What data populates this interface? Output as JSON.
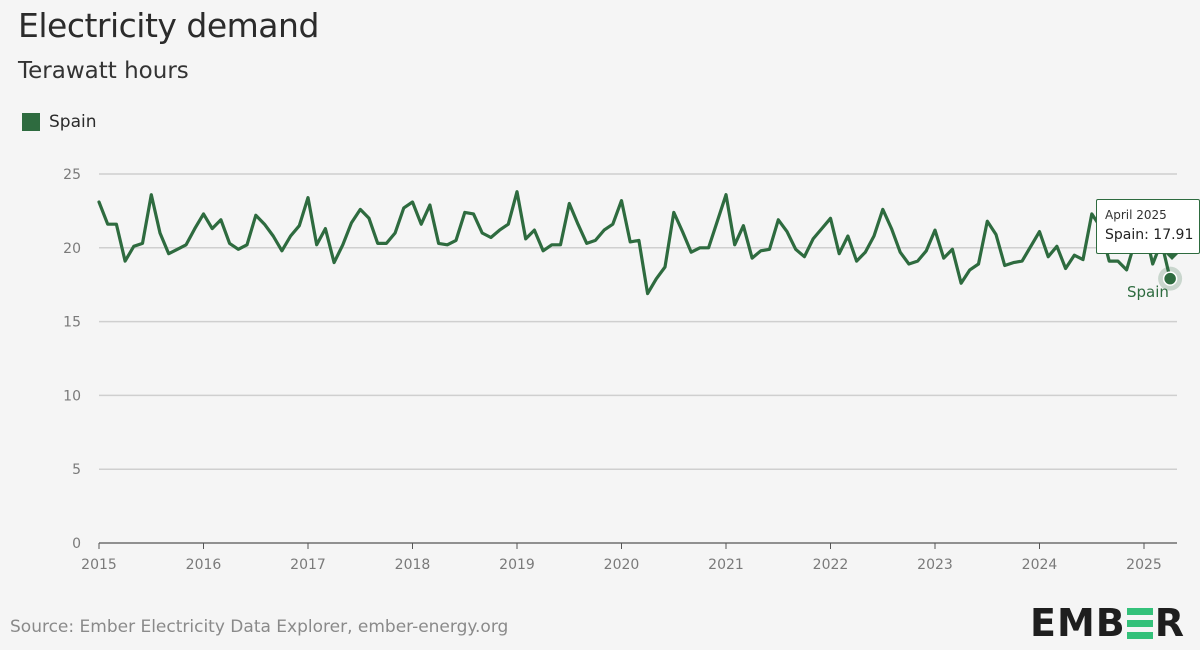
{
  "header": {
    "title": "Electricity demand",
    "subtitle": "Terawatt hours"
  },
  "legend": {
    "label": "Spain",
    "color": "#2e6b3f"
  },
  "tooltip": {
    "date": "April 2025",
    "value_text": "Spain: 17.91"
  },
  "end_label": "Spain",
  "footer": {
    "source": "Source: Ember Electricity Data Explorer, ember-energy.org",
    "logo": {
      "left": "EMB",
      "right": "R",
      "accent_color": "#34c17a"
    }
  },
  "chart_data": {
    "type": "line",
    "title": "Electricity demand",
    "subtitle": "Terawatt hours",
    "xlabel": "",
    "ylabel": "",
    "x_start": "2015-01",
    "x_end": "2025-04",
    "x_ticks": [
      "2015",
      "2016",
      "2017",
      "2018",
      "2019",
      "2020",
      "2021",
      "2022",
      "2023",
      "2024",
      "2025"
    ],
    "y_ticks": [
      0,
      5,
      10,
      15,
      20,
      25
    ],
    "ylim": [
      0,
      25
    ],
    "grid": true,
    "series": [
      {
        "name": "Spain",
        "color": "#2e6b3f",
        "values": [
          23.1,
          21.6,
          21.6,
          19.1,
          20.1,
          20.3,
          23.6,
          21.0,
          19.6,
          19.9,
          20.2,
          21.3,
          22.3,
          21.3,
          21.9,
          20.3,
          19.9,
          20.2,
          22.2,
          21.6,
          20.8,
          19.8,
          20.8,
          21.5,
          23.4,
          20.2,
          21.3,
          19.0,
          20.2,
          21.7,
          22.6,
          22.0,
          20.3,
          20.3,
          21.0,
          22.7,
          23.1,
          21.6,
          22.9,
          20.3,
          20.2,
          20.5,
          22.4,
          22.3,
          21.0,
          20.7,
          21.2,
          21.6,
          23.8,
          20.6,
          21.2,
          19.8,
          20.2,
          20.2,
          23.0,
          21.6,
          20.3,
          20.5,
          21.2,
          21.6,
          23.2,
          20.4,
          20.5,
          16.9,
          17.9,
          18.7,
          22.4,
          21.1,
          19.7,
          20.0,
          20.0,
          21.8,
          23.6,
          20.2,
          21.5,
          19.3,
          19.8,
          19.9,
          21.9,
          21.1,
          19.9,
          19.4,
          20.6,
          21.3,
          22.0,
          19.6,
          20.8,
          19.1,
          19.7,
          20.8,
          22.6,
          21.3,
          19.7,
          18.9,
          19.1,
          19.8,
          21.2,
          19.3,
          19.9,
          17.6,
          18.5,
          18.9,
          21.8,
          20.9,
          18.8,
          19.0,
          19.1,
          20.1,
          21.1,
          19.4,
          20.1,
          18.6,
          19.5,
          19.2,
          22.3,
          21.4,
          19.1,
          19.1,
          18.5,
          20.5,
          21.5,
          18.9,
          20.4,
          17.91
        ]
      }
    ],
    "highlight": {
      "date": "2025-04",
      "value": 17.91
    }
  }
}
